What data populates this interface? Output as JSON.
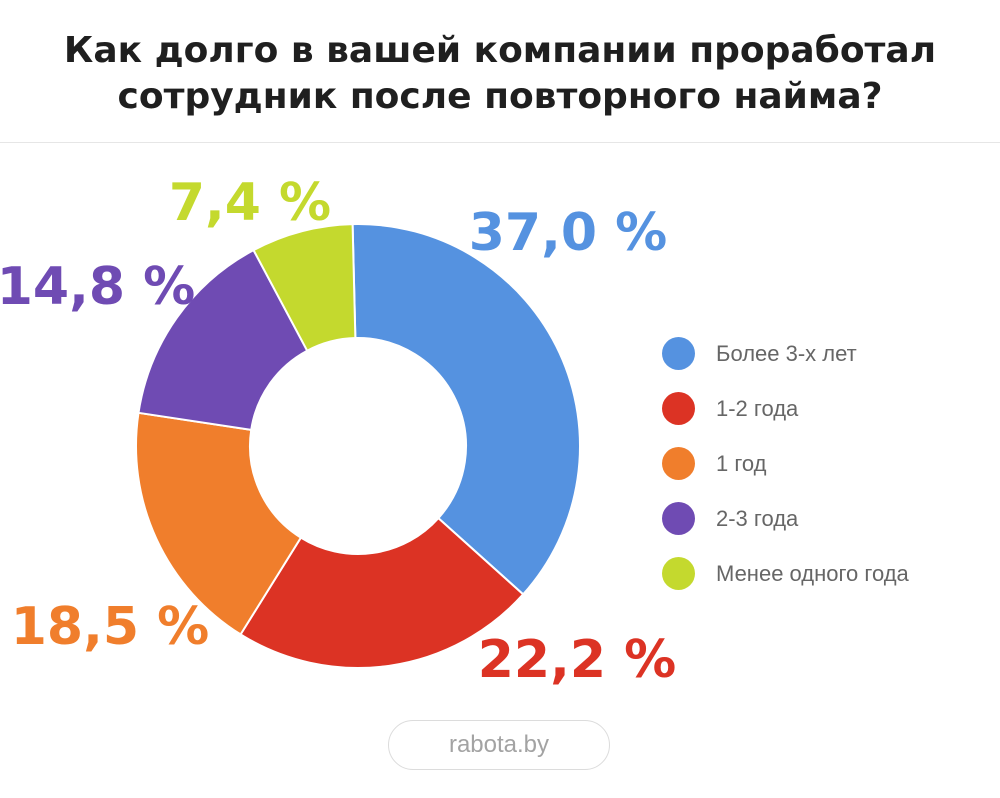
{
  "title": {
    "line1": "Как долго в вашей компании проработал",
    "line2": "сотрудник после повторного найма?"
  },
  "source": "rabota.by",
  "chart_data": {
    "type": "pie",
    "style": "donut",
    "title": "Как долго в вашей компании проработал сотрудник после повторного найма?",
    "legend_position": "right",
    "series": [
      {
        "name": "Более 3-х лет",
        "value": 37.0,
        "label": "37,0 %",
        "color": "#5592e0"
      },
      {
        "name": "1-2 года",
        "value": 22.2,
        "label": "22,2 %",
        "color": "#dc3324"
      },
      {
        "name": "1 год",
        "value": 18.5,
        "label": "18,5 %",
        "color": "#f07e2c"
      },
      {
        "name": "2-3 года",
        "value": 14.8,
        "label": "14,8 %",
        "color": "#6f4bb3"
      },
      {
        "name": "Менее одного года",
        "value": 7.4,
        "label": "7,4 %",
        "color": "#c4d92e"
      }
    ]
  },
  "legend": [
    {
      "label": "Более 3-х лет",
      "color": "#5592e0"
    },
    {
      "label": "1-2 года",
      "color": "#dc3324"
    },
    {
      "label": "1 год",
      "color": "#f07e2c"
    },
    {
      "label": "2-3 года",
      "color": "#6f4bb3"
    },
    {
      "label": "Менее одного года",
      "color": "#c4d92e"
    }
  ]
}
